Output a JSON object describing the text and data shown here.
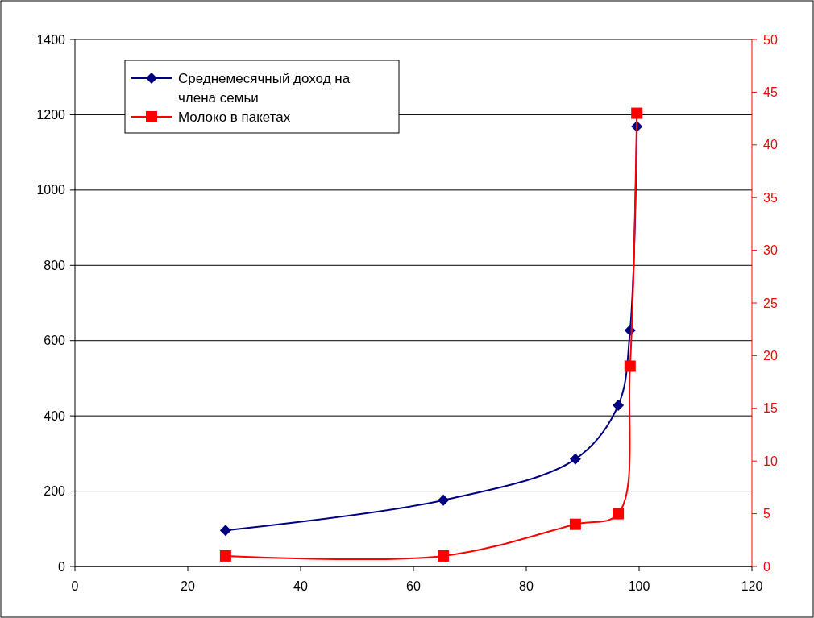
{
  "chart_data": {
    "type": "line",
    "x": [
      26.7,
      65.3,
      88.7,
      96.3,
      98.4,
      99.6
    ],
    "series": [
      {
        "name": "Среднемесячный доход на члена семьи",
        "color": "#000080",
        "marker": "diamond",
        "values": [
          96,
          176,
          285,
          428,
          627,
          1169
        ]
      },
      {
        "name": "Молоко в пакетах",
        "color": "#ff0000",
        "marker": "square",
        "axis": "y2",
        "values": [
          1,
          1,
          4,
          5,
          19,
          43
        ]
      }
    ],
    "xlim": [
      0,
      120
    ],
    "xticks": [
      0,
      20,
      40,
      60,
      80,
      100,
      120
    ],
    "ylim": [
      0,
      1400
    ],
    "yticks": [
      0,
      200,
      400,
      600,
      800,
      1000,
      1200,
      1400
    ],
    "y2lim": [
      0,
      50
    ],
    "y2ticks": [
      0,
      5,
      10,
      15,
      20,
      25,
      30,
      35,
      40,
      45,
      50
    ],
    "grid": "y",
    "legend": "top left",
    "line_style": "solid"
  }
}
